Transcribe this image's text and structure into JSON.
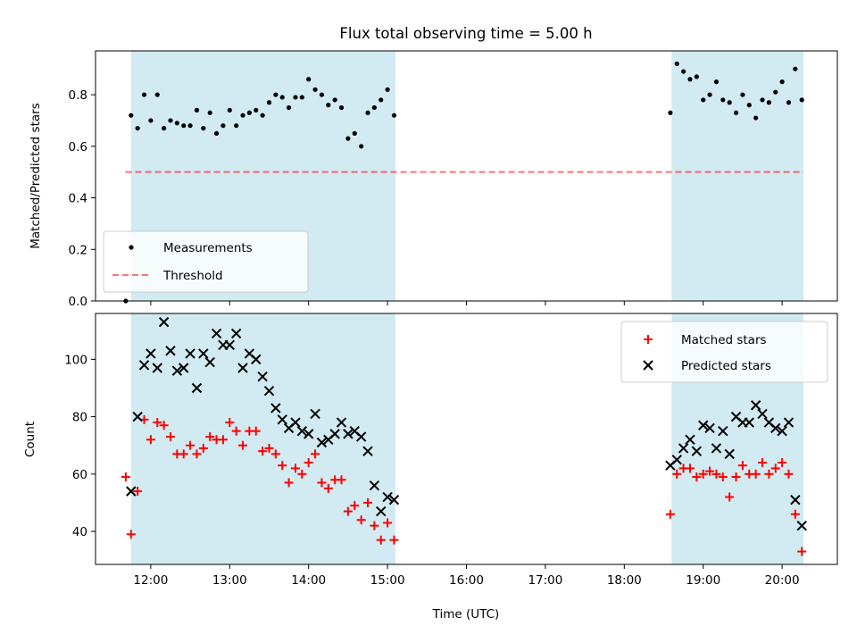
{
  "chart_data": {
    "title": "Flux total observing time = 5.00 h",
    "xlabel": "Time (UTC)",
    "x_ticks": [
      "12:00",
      "13:00",
      "14:00",
      "15:00",
      "16:00",
      "17:00",
      "18:00",
      "19:00",
      "20:00"
    ],
    "x_tick_hours": [
      12,
      13,
      14,
      15,
      16,
      17,
      18,
      19,
      20
    ],
    "xlim_hours": [
      11.3,
      20.7
    ],
    "shaded_intervals_hours": [
      [
        11.75,
        15.1
      ],
      [
        18.6,
        20.27
      ]
    ],
    "shade_color": "#add8e6",
    "panels": [
      {
        "type": "scatter",
        "ylabel": "Matched/Predicted stars",
        "ylim": [
          0,
          0.97
        ],
        "y_ticks": [
          0.0,
          0.2,
          0.4,
          0.6,
          0.8
        ],
        "legend": {
          "placement": "lower-left",
          "entries": [
            "Measurements",
            "Threshold"
          ]
        },
        "threshold": {
          "name": "Threshold",
          "value": 0.5,
          "x_range_hours": [
            11.68,
            20.27
          ],
          "color": "#ff0000",
          "style": "dashed"
        },
        "series": [
          {
            "name": "Measurements",
            "marker": "dot",
            "color": "#000000",
            "x": [
              "11:41",
              "11:45",
              "11:50",
              "11:55",
              "12:00",
              "12:05",
              "12:10",
              "12:15",
              "12:20",
              "12:25",
              "12:30",
              "12:35",
              "12:40",
              "12:45",
              "12:50",
              "12:55",
              "13:00",
              "13:05",
              "13:10",
              "13:15",
              "13:20",
              "13:25",
              "13:30",
              "13:35",
              "13:40",
              "13:45",
              "13:50",
              "13:55",
              "14:00",
              "14:05",
              "14:10",
              "14:15",
              "14:20",
              "14:25",
              "14:30",
              "14:35",
              "14:40",
              "14:45",
              "14:50",
              "14:55",
              "15:00",
              "15:05",
              "18:35",
              "18:40",
              "18:45",
              "18:50",
              "18:55",
              "19:00",
              "19:05",
              "19:10",
              "19:15",
              "19:20",
              "19:25",
              "19:30",
              "19:35",
              "19:40",
              "19:45",
              "19:50",
              "19:55",
              "20:00",
              "20:05",
              "20:10",
              "20:15"
            ],
            "y": [
              0.0,
              0.72,
              0.67,
              0.8,
              0.7,
              0.8,
              0.67,
              0.7,
              0.69,
              0.68,
              0.68,
              0.74,
              0.67,
              0.73,
              0.65,
              0.68,
              0.74,
              0.68,
              0.72,
              0.73,
              0.74,
              0.72,
              0.77,
              0.8,
              0.79,
              0.75,
              0.79,
              0.79,
              0.86,
              0.82,
              0.8,
              0.76,
              0.78,
              0.75,
              0.63,
              0.65,
              0.6,
              0.73,
              0.75,
              0.78,
              0.82,
              0.72,
              0.73,
              0.92,
              0.89,
              0.86,
              0.87,
              0.78,
              0.8,
              0.85,
              0.78,
              0.77,
              0.73,
              0.8,
              0.76,
              0.71,
              0.78,
              0.77,
              0.81,
              0.85,
              0.77,
              0.9,
              0.78
            ]
          }
        ]
      },
      {
        "type": "scatter",
        "ylabel": "Count",
        "ylim": [
          28.5,
          116
        ],
        "y_ticks": [
          40,
          60,
          80,
          100
        ],
        "legend": {
          "placement": "upper-right",
          "entries": [
            "Matched stars",
            "Predicted stars"
          ]
        },
        "series": [
          {
            "name": "Matched stars",
            "marker": "plus",
            "color": "#ff0000",
            "x": [
              "11:41",
              "11:45",
              "11:50",
              "11:55",
              "12:00",
              "12:05",
              "12:10",
              "12:15",
              "12:20",
              "12:25",
              "12:30",
              "12:35",
              "12:40",
              "12:45",
              "12:50",
              "12:55",
              "13:00",
              "13:05",
              "13:10",
              "13:15",
              "13:20",
              "13:25",
              "13:30",
              "13:35",
              "13:40",
              "13:45",
              "13:50",
              "13:55",
              "14:00",
              "14:05",
              "14:10",
              "14:15",
              "14:20",
              "14:25",
              "14:30",
              "14:35",
              "14:40",
              "14:45",
              "14:50",
              "14:55",
              "15:00",
              "15:05",
              "18:35",
              "18:40",
              "18:45",
              "18:50",
              "18:55",
              "19:00",
              "19:05",
              "19:10",
              "19:15",
              "19:20",
              "19:25",
              "19:30",
              "19:35",
              "19:40",
              "19:45",
              "19:50",
              "19:55",
              "20:00",
              "20:05",
              "20:10",
              "20:15"
            ],
            "y": [
              59,
              39,
              54,
              79,
              72,
              78,
              77,
              73,
              67,
              67,
              70,
              67,
              69,
              73,
              72,
              72,
              78,
              75,
              70,
              75,
              75,
              68,
              69,
              67,
              63,
              57,
              62,
              60,
              64,
              67,
              57,
              55,
              58,
              58,
              47,
              49,
              44,
              50,
              42,
              37,
              43,
              37,
              46,
              60,
              62,
              62,
              59,
              60,
              61,
              60,
              59,
              52,
              59,
              63,
              60,
              60,
              64,
              60,
              62,
              64,
              60,
              46,
              33
            ]
          },
          {
            "name": "Predicted stars",
            "marker": "x",
            "color": "#000000",
            "x": [
              "11:45",
              "11:50",
              "11:55",
              "12:00",
              "12:05",
              "12:10",
              "12:15",
              "12:20",
              "12:25",
              "12:30",
              "12:35",
              "12:40",
              "12:45",
              "12:50",
              "12:55",
              "13:00",
              "13:05",
              "13:10",
              "13:15",
              "13:20",
              "13:25",
              "13:30",
              "13:35",
              "13:40",
              "13:45",
              "13:50",
              "13:55",
              "14:00",
              "14:05",
              "14:10",
              "14:15",
              "14:20",
              "14:25",
              "14:30",
              "14:35",
              "14:40",
              "14:45",
              "14:50",
              "14:55",
              "15:00",
              "15:05",
              "18:35",
              "18:40",
              "18:45",
              "18:50",
              "18:55",
              "19:00",
              "19:05",
              "19:10",
              "19:15",
              "19:20",
              "19:25",
              "19:30",
              "19:35",
              "19:40",
              "19:45",
              "19:50",
              "19:55",
              "20:00",
              "20:05",
              "20:10",
              "20:15"
            ],
            "y": [
              54,
              80,
              98,
              102,
              97,
              113,
              103,
              96,
              97,
              102,
              90,
              102,
              99,
              109,
              105,
              105,
              109,
              97,
              102,
              100,
              94,
              89,
              83,
              79,
              76,
              78,
              75,
              74,
              81,
              71,
              72,
              74,
              78,
              74,
              75,
              73,
              68,
              56,
              47,
              52,
              51,
              63,
              65,
              69,
              72,
              68,
              77,
              76,
              69,
              75,
              67,
              80,
              78,
              78,
              84,
              81,
              78,
              76,
              75,
              78,
              51,
              42
            ]
          }
        ]
      }
    ]
  }
}
